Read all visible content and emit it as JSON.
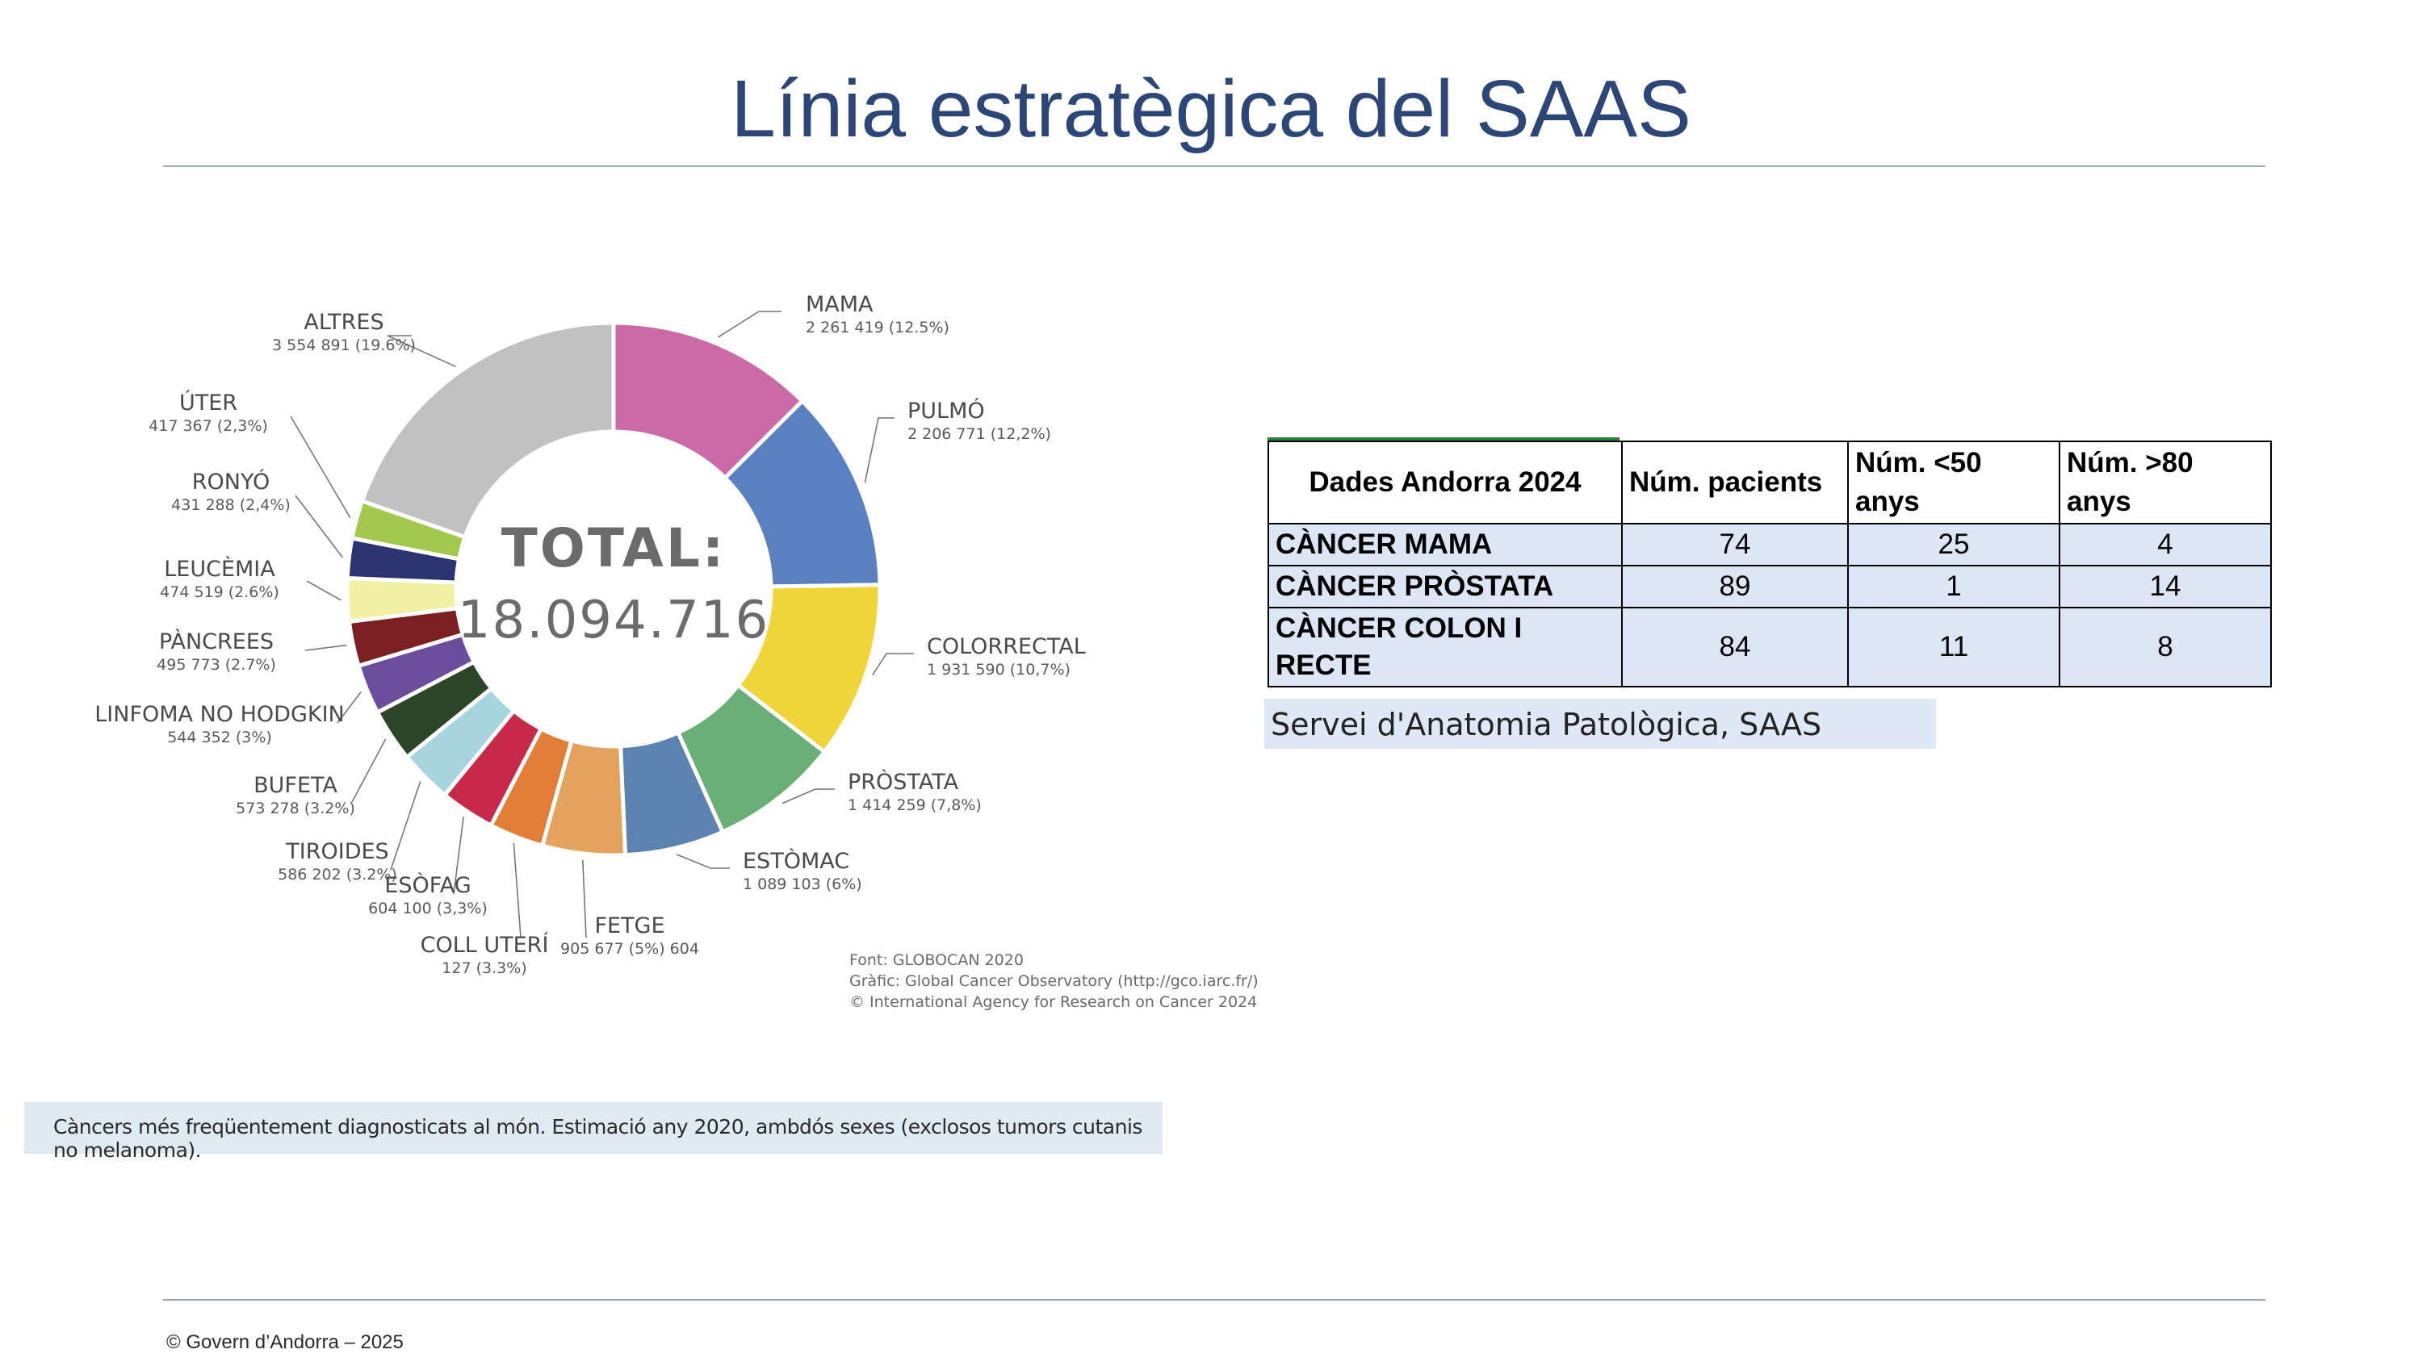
{
  "slide": {
    "title": "Línia estratègica del SAAS",
    "footer": "© Govern d’Andorra – 2025"
  },
  "chart_data": {
    "type": "pie",
    "variant": "donut",
    "center_text": [
      "TOTAL:",
      "18.094.716"
    ],
    "slices": [
      {
        "label": "MAMA",
        "value_text": "2 261 419 (12.5%)",
        "percent": 12.5,
        "color": "#cc6aa8"
      },
      {
        "label": "PULMÓ",
        "value_text": "2 206 771 (12,2%)",
        "percent": 12.2,
        "color": "#5b80c2"
      },
      {
        "label": "COLORRECTAL",
        "value_text": "1 931 590 (10,7%)",
        "percent": 10.7,
        "color": "#f0d43a"
      },
      {
        "label": "PRÒSTATA",
        "value_text": "1 414 259 (7,8%)",
        "percent": 7.8,
        "color": "#6aae78"
      },
      {
        "label": "ESTÒMAC",
        "value_text": "1 089 103 (6%)",
        "percent": 6.0,
        "color": "#5b82b0"
      },
      {
        "label": "FETGE",
        "value_text": "905 677 (5%) 604",
        "percent": 5.0,
        "color": "#e3a35c"
      },
      {
        "label": "COLL UTERÍ",
        "value_text": "127 (3.3%)",
        "percent": 3.3,
        "color": "#e27e35"
      },
      {
        "label": "ESÒFAG",
        "value_text": "604 100 (3,3%)",
        "percent": 3.3,
        "color": "#c8294b"
      },
      {
        "label": "TIROIDES",
        "value_text": "586 202 (3.2%)",
        "percent": 3.2,
        "color": "#a8d4de"
      },
      {
        "label": "BUFETA",
        "value_text": "573 278 (3.2%)",
        "percent": 3.2,
        "color": "#2c4427"
      },
      {
        "label": "LINFOMA NO HODGKIN",
        "value_text": "544 352 (3%)",
        "percent": 3.0,
        "color": "#6a4d9c"
      },
      {
        "label": "PÀNCREES",
        "value_text": "495 773 (2.7%)",
        "percent": 2.7,
        "color": "#7c1f22"
      },
      {
        "label": "LEUCÈMIA",
        "value_text": "474 519 (2.6%)",
        "percent": 2.6,
        "color": "#f2f0a2"
      },
      {
        "label": "RONYÓ",
        "value_text": "431 288 (2,4%)",
        "percent": 2.4,
        "color": "#2b3470"
      },
      {
        "label": "ÚTER",
        "value_text": "417 367 (2,3%)",
        "percent": 2.3,
        "color": "#a3c84e"
      },
      {
        "label": "ALTRES",
        "value_text": "3 554 891 (19.6%)",
        "percent": 19.6,
        "color": "#c1c1c1"
      }
    ],
    "source": [
      "Font: GLOBOCAN 2020",
      "Gràfic: Global Cancer Observatory (http://gco.iarc.fr/)",
      "© International Agency for Research on Cancer 2024"
    ],
    "caption": "Càncers més freqüentement diagnosticats al món. Estimació any 2020, ambdós sexes (exclosos tumors cutanis no melanoma)."
  },
  "table": {
    "headers": [
      "Dades Andorra 2024",
      "Núm. pacients",
      "Núm. <50 anys",
      "Núm. >80 anys"
    ],
    "rows": [
      [
        "CÀNCER MAMA",
        "74",
        "25",
        "4"
      ],
      [
        "CÀNCER PRÒSTATA",
        "89",
        "1",
        "14"
      ],
      [
        "CÀNCER COLON I RECTE",
        "84",
        "11",
        "8"
      ]
    ],
    "source": "Servei d'Anatomia Patològica, SAAS"
  }
}
